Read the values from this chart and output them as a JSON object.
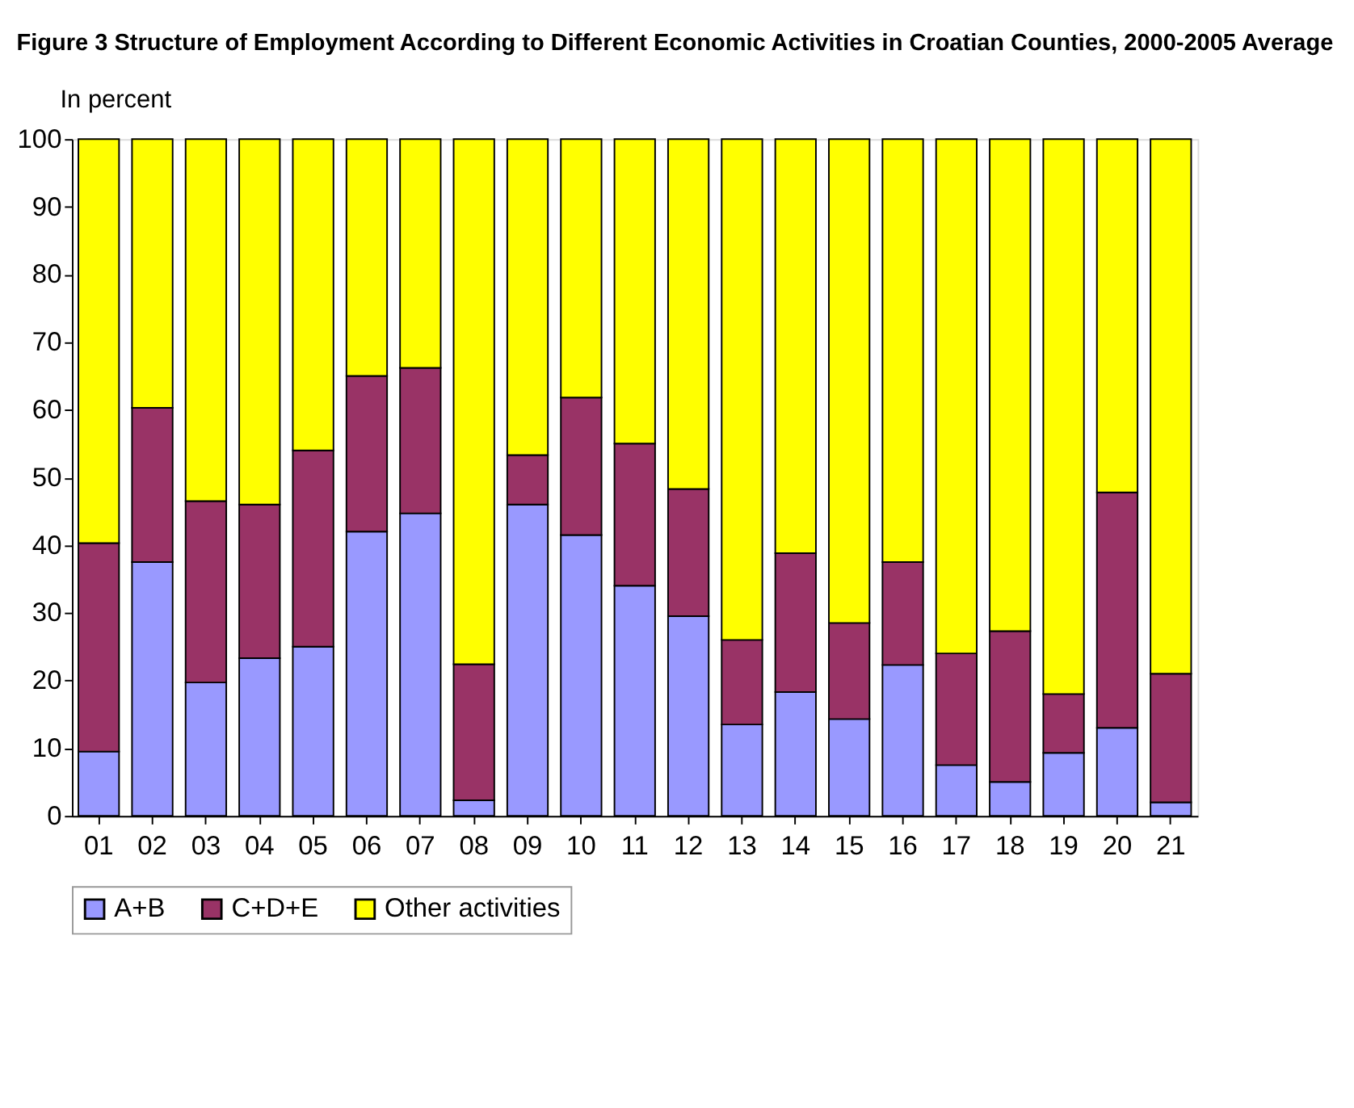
{
  "chart_data": {
    "type": "bar",
    "stacked": true,
    "title": "Figure 3 Structure of Employment According to Different Economic Activities in Croatian Counties, 2000-2005 Average",
    "ylabel": "In percent",
    "categories": [
      "01",
      "02",
      "03",
      "04",
      "05",
      "06",
      "07",
      "08",
      "09",
      "10",
      "11",
      "12",
      "13",
      "14",
      "15",
      "16",
      "17",
      "18",
      "19",
      "20",
      "21"
    ],
    "series": [
      {
        "name": "A+B",
        "color": "#9999ff",
        "values": [
          9.5,
          37.5,
          19.7,
          23.3,
          25,
          42,
          44.7,
          2.3,
          46,
          41.5,
          34,
          29.5,
          13.5,
          18.3,
          14.3,
          22.3,
          7.5,
          5,
          9.3,
          13,
          2
        ]
      },
      {
        "name": "C+D+E",
        "color": "#993366",
        "values": [
          30.8,
          22.8,
          26.8,
          22.7,
          29,
          23,
          21.5,
          20.1,
          7.3,
          20.3,
          21,
          18.8,
          12.5,
          20.5,
          14.2,
          15.2,
          16.5,
          22.3,
          8.7,
          34.8,
          19
        ]
      },
      {
        "name": "Other activities",
        "color": "#ffff00",
        "values": [
          59.7,
          39.7,
          53.5,
          54,
          46,
          35,
          33.8,
          77.6,
          46.7,
          38.2,
          45,
          51.7,
          74,
          61.2,
          71.5,
          62.5,
          76,
          72.7,
          82,
          52.2,
          79
        ]
      }
    ],
    "ylim": [
      0,
      100
    ],
    "yticks": [
      0,
      10,
      20,
      30,
      40,
      50,
      60,
      70,
      80,
      90,
      100
    ],
    "grid": false,
    "legend": "bottom"
  }
}
